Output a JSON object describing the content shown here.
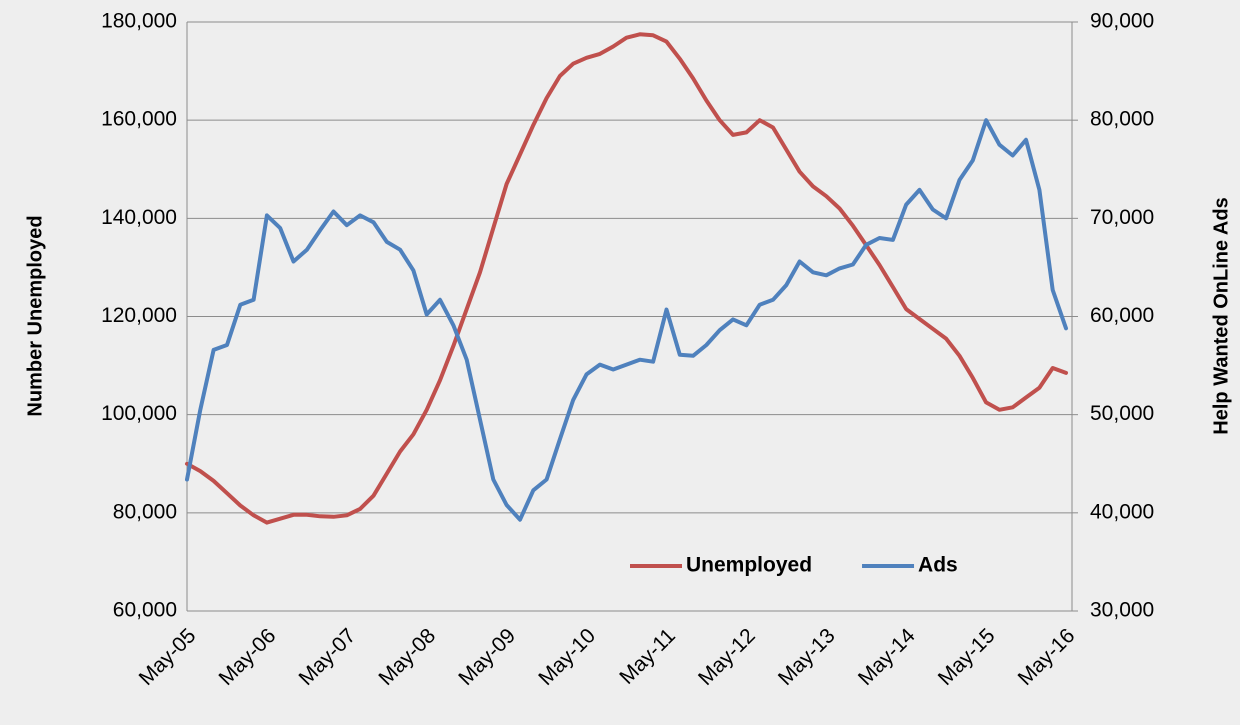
{
  "chart_data": {
    "type": "line",
    "y_label": "Number Unemployed",
    "y2_label": "Help Wanted OnLine Ads",
    "categories": [
      "May-05",
      null,
      null,
      null,
      null,
      null,
      "May-06",
      null,
      null,
      null,
      null,
      null,
      "May-07",
      null,
      null,
      null,
      null,
      null,
      "May-08",
      null,
      null,
      null,
      null,
      null,
      "May-09",
      null,
      null,
      null,
      null,
      null,
      "May-10",
      null,
      null,
      null,
      null,
      null,
      "May-11",
      null,
      null,
      null,
      null,
      null,
      "May-12",
      null,
      null,
      null,
      null,
      null,
      "May-13",
      null,
      null,
      null,
      null,
      null,
      "May-14",
      null,
      null,
      null,
      null,
      null,
      "May-15",
      null,
      null,
      null,
      null,
      null,
      "May-16"
    ],
    "series": [
      {
        "name": "Unemployed",
        "color": "#c0504d",
        "values": [
          90000,
          88500,
          86500,
          84000,
          81500,
          79500,
          78000,
          78800,
          79600,
          79600,
          79300,
          79200,
          79500,
          80800,
          83500,
          88000,
          92500,
          96000,
          101000,
          107000,
          114000,
          121500,
          129000,
          138000,
          147000,
          153000,
          159000,
          164500,
          169000,
          171500,
          172700,
          173500,
          175000,
          176800,
          177500,
          177300,
          176000,
          172500,
          168500,
          164000,
          160000,
          157000,
          157500,
          160000,
          158500,
          154000,
          149500,
          146500,
          144500,
          142000,
          138500,
          134500,
          130500,
          126000,
          121500,
          119500,
          117500,
          115500,
          112000,
          107500,
          102500,
          101000,
          101500,
          103500,
          105500,
          109500,
          108500
        ]
      },
      {
        "name": "Ads",
        "color": "#4f81bd",
        "axis": "y2",
        "values": [
          43400,
          50500,
          56600,
          57100,
          61200,
          61700,
          70300,
          69000,
          65600,
          66800,
          68800,
          70700,
          69300,
          70300,
          69600,
          67600,
          66800,
          64700,
          60200,
          61700,
          59100,
          55600,
          49500,
          43400,
          40800,
          39300,
          42300,
          43400,
          47500,
          51500,
          54100,
          55100,
          54600,
          55100,
          55600,
          55400,
          60700,
          56100,
          56000,
          57100,
          58600,
          59700,
          59100,
          61200,
          61700,
          63200,
          65600,
          64500,
          64200,
          64900,
          65300,
          67300,
          68000,
          67800,
          71400,
          72900,
          70900,
          70000,
          73900,
          75900,
          80000,
          77500,
          76400,
          78000,
          72900,
          62700,
          58800
        ]
      }
    ],
    "ylim": [
      60000,
      180000
    ],
    "yticks": [
      {
        "value": 60000,
        "label": "60,000"
      },
      {
        "value": 80000,
        "label": "80,000"
      },
      {
        "value": 100000,
        "label": "100,000"
      },
      {
        "value": 120000,
        "label": "120,000"
      },
      {
        "value": 140000,
        "label": "140,000"
      },
      {
        "value": 160000,
        "label": "160,000"
      },
      {
        "value": 180000,
        "label": "180,000"
      }
    ],
    "y2lim": [
      30000,
      90000
    ],
    "y2ticks": [
      {
        "value": 30000,
        "label": "30,000"
      },
      {
        "value": 40000,
        "label": "40,000"
      },
      {
        "value": 50000,
        "label": "50,000"
      },
      {
        "value": 60000,
        "label": "60,000"
      },
      {
        "value": 70000,
        "label": "70,000"
      },
      {
        "value": 80000,
        "label": "80,000"
      },
      {
        "value": 90000,
        "label": "90,000"
      }
    ],
    "grid": true,
    "legend": "bottom-right"
  }
}
